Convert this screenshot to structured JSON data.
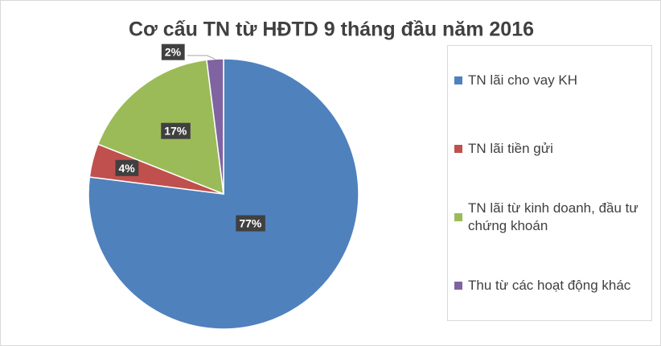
{
  "chart_data": {
    "type": "pie",
    "title": "Cơ cấu TN từ HĐTD 9 tháng đầu năm 2016",
    "categories": [
      "TN lãi cho vay KH",
      "TN lãi tiền gửi",
      "TN lãi từ kinh doanh, đầu tư chứng khoán",
      "Thu từ các hoạt động khác"
    ],
    "values": [
      77,
      4,
      17,
      2
    ],
    "value_labels": [
      "77%",
      "4%",
      "17%",
      "2%"
    ],
    "colors": [
      "#4f81bd",
      "#c0504d",
      "#9bbb59",
      "#8064a2"
    ],
    "legend": "right"
  }
}
